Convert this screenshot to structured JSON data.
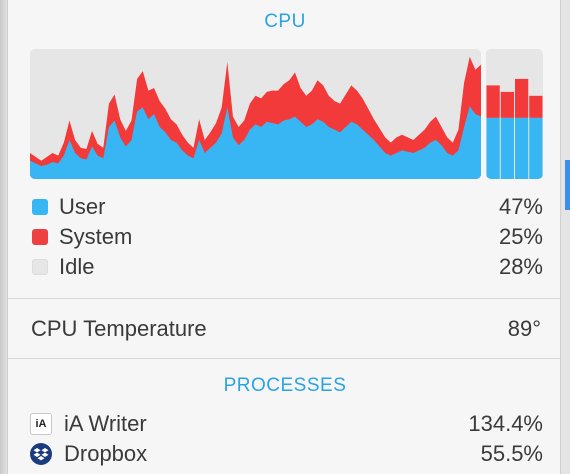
{
  "cpu": {
    "title": "CPU",
    "colors": {
      "user": "#38b6f3",
      "system": "#f23a3a",
      "idle": "#e6e6e6"
    },
    "legend": [
      {
        "key": "user",
        "label": "User",
        "value": "47%",
        "color": "#38b6f3"
      },
      {
        "key": "system",
        "label": "System",
        "value": "25%",
        "color": "#ee4040"
      },
      {
        "key": "idle",
        "label": "Idle",
        "value": "28%",
        "color": "#e6e6e6"
      }
    ],
    "current_bars": [
      {
        "user": 0.47,
        "system": 0.25
      },
      {
        "user": 0.47,
        "system": 0.2
      },
      {
        "user": 0.47,
        "system": 0.3
      },
      {
        "user": 0.47,
        "system": 0.17
      }
    ],
    "history": [
      {
        "user": 0.14,
        "system": 0.06
      },
      {
        "user": 0.12,
        "system": 0.05
      },
      {
        "user": 0.1,
        "system": 0.04
      },
      {
        "user": 0.11,
        "system": 0.06
      },
      {
        "user": 0.13,
        "system": 0.07
      },
      {
        "user": 0.12,
        "system": 0.06
      },
      {
        "user": 0.18,
        "system": 0.1
      },
      {
        "user": 0.3,
        "system": 0.15
      },
      {
        "user": 0.2,
        "system": 0.1
      },
      {
        "user": 0.16,
        "system": 0.08
      },
      {
        "user": 0.15,
        "system": 0.08
      },
      {
        "user": 0.25,
        "system": 0.12
      },
      {
        "user": 0.18,
        "system": 0.09
      },
      {
        "user": 0.16,
        "system": 0.08
      },
      {
        "user": 0.4,
        "system": 0.18
      },
      {
        "user": 0.45,
        "system": 0.2
      },
      {
        "user": 0.32,
        "system": 0.14
      },
      {
        "user": 0.25,
        "system": 0.12
      },
      {
        "user": 0.3,
        "system": 0.15
      },
      {
        "user": 0.52,
        "system": 0.25
      },
      {
        "user": 0.55,
        "system": 0.28
      },
      {
        "user": 0.46,
        "system": 0.22
      },
      {
        "user": 0.5,
        "system": 0.2
      },
      {
        "user": 0.4,
        "system": 0.2
      },
      {
        "user": 0.36,
        "system": 0.18
      },
      {
        "user": 0.3,
        "system": 0.16
      },
      {
        "user": 0.28,
        "system": 0.14
      },
      {
        "user": 0.22,
        "system": 0.12
      },
      {
        "user": 0.18,
        "system": 0.1
      },
      {
        "user": 0.16,
        "system": 0.08
      },
      {
        "user": 0.3,
        "system": 0.16
      },
      {
        "user": 0.2,
        "system": 0.1
      },
      {
        "user": 0.24,
        "system": 0.12
      },
      {
        "user": 0.28,
        "system": 0.15
      },
      {
        "user": 0.35,
        "system": 0.2
      },
      {
        "user": 0.55,
        "system": 0.35
      },
      {
        "user": 0.32,
        "system": 0.16
      },
      {
        "user": 0.26,
        "system": 0.14
      },
      {
        "user": 0.3,
        "system": 0.15
      },
      {
        "user": 0.38,
        "system": 0.2
      },
      {
        "user": 0.42,
        "system": 0.22
      },
      {
        "user": 0.4,
        "system": 0.22
      },
      {
        "user": 0.44,
        "system": 0.23
      },
      {
        "user": 0.43,
        "system": 0.25
      },
      {
        "user": 0.42,
        "system": 0.26
      },
      {
        "user": 0.45,
        "system": 0.28
      },
      {
        "user": 0.46,
        "system": 0.3
      },
      {
        "user": 0.48,
        "system": 0.34
      },
      {
        "user": 0.44,
        "system": 0.26
      },
      {
        "user": 0.4,
        "system": 0.24
      },
      {
        "user": 0.42,
        "system": 0.26
      },
      {
        "user": 0.46,
        "system": 0.3
      },
      {
        "user": 0.44,
        "system": 0.28
      },
      {
        "user": 0.4,
        "system": 0.24
      },
      {
        "user": 0.38,
        "system": 0.22
      },
      {
        "user": 0.36,
        "system": 0.22
      },
      {
        "user": 0.4,
        "system": 0.25
      },
      {
        "user": 0.44,
        "system": 0.28
      },
      {
        "user": 0.42,
        "system": 0.26
      },
      {
        "user": 0.38,
        "system": 0.24
      },
      {
        "user": 0.34,
        "system": 0.2
      },
      {
        "user": 0.3,
        "system": 0.16
      },
      {
        "user": 0.25,
        "system": 0.14
      },
      {
        "user": 0.2,
        "system": 0.12
      },
      {
        "user": 0.18,
        "system": 0.1
      },
      {
        "user": 0.2,
        "system": 0.12
      },
      {
        "user": 0.22,
        "system": 0.12
      },
      {
        "user": 0.21,
        "system": 0.11
      },
      {
        "user": 0.2,
        "system": 0.1
      },
      {
        "user": 0.22,
        "system": 0.12
      },
      {
        "user": 0.24,
        "system": 0.14
      },
      {
        "user": 0.28,
        "system": 0.16
      },
      {
        "user": 0.3,
        "system": 0.18
      },
      {
        "user": 0.26,
        "system": 0.14
      },
      {
        "user": 0.2,
        "system": 0.12
      },
      {
        "user": 0.18,
        "system": 0.1
      },
      {
        "user": 0.22,
        "system": 0.16
      },
      {
        "user": 0.4,
        "system": 0.34
      },
      {
        "user": 0.56,
        "system": 0.38
      },
      {
        "user": 0.5,
        "system": 0.34
      },
      {
        "user": 0.48,
        "system": 0.4
      }
    ]
  },
  "temperature": {
    "label": "CPU Temperature",
    "value": "89°"
  },
  "processes": {
    "title": "PROCESSES",
    "items": [
      {
        "icon": "ia-writer-icon",
        "icon_text": "iA",
        "name": "iA Writer",
        "value": "134.4%"
      },
      {
        "icon": "dropbox-icon",
        "name": "Dropbox",
        "value": "55.5%"
      }
    ]
  }
}
